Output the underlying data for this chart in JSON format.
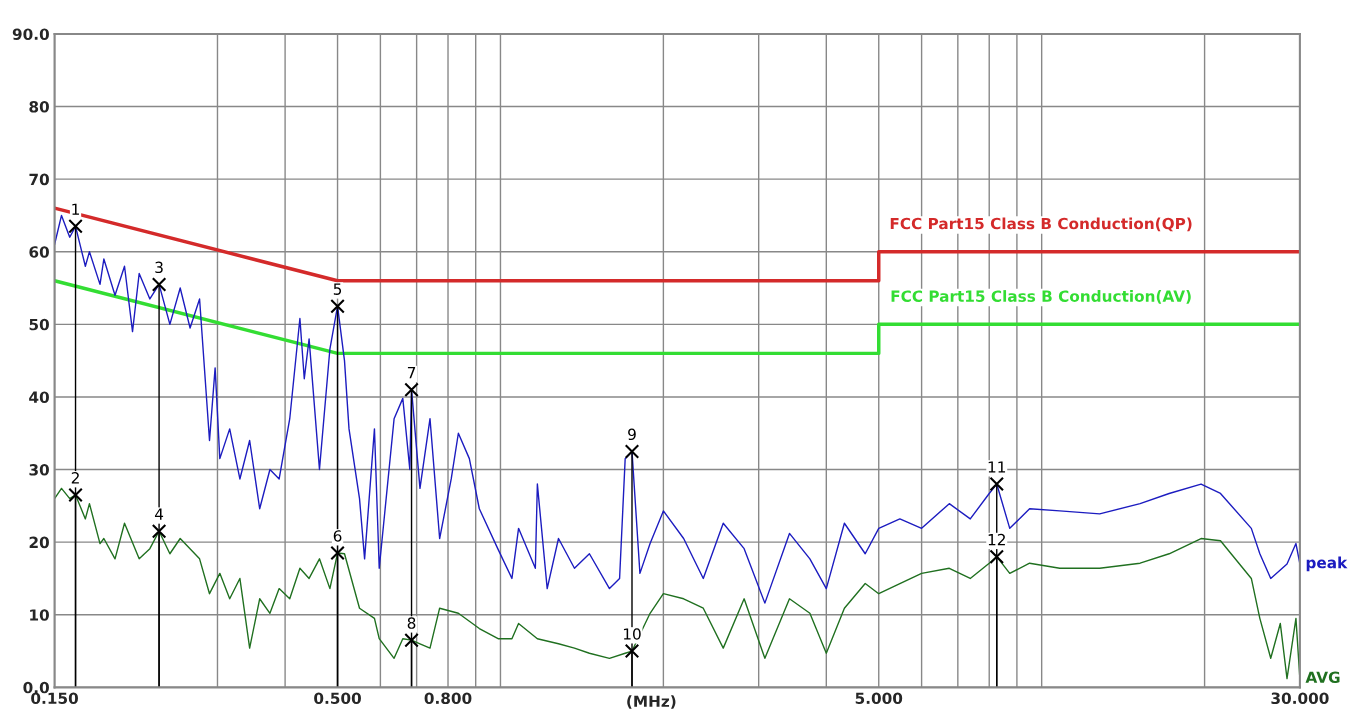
{
  "chart_data": {
    "type": "line",
    "xlabel": "(MHz)",
    "log": "x",
    "xlim": [
      0.15,
      30
    ],
    "ylim": [
      0,
      90
    ],
    "grid": true,
    "xticks": [
      {
        "value": 0.15,
        "label": "0.150"
      },
      {
        "value": 0.3,
        "label": null
      },
      {
        "value": 0.4,
        "label": null
      },
      {
        "value": 0.5,
        "label": "0.500"
      },
      {
        "value": 0.6,
        "label": null
      },
      {
        "value": 0.7,
        "label": null
      },
      {
        "value": 0.8,
        "label": "0.800"
      },
      {
        "value": 0.9,
        "label": null
      },
      {
        "value": 1,
        "label": null
      },
      {
        "value": 2,
        "label": null
      },
      {
        "value": 3,
        "label": null
      },
      {
        "value": 4,
        "label": null
      },
      {
        "value": 5,
        "label": "5.000"
      },
      {
        "value": 6,
        "label": null
      },
      {
        "value": 7,
        "label": null
      },
      {
        "value": 8,
        "label": null
      },
      {
        "value": 9,
        "label": null
      },
      {
        "value": 10,
        "label": null
      },
      {
        "value": 20,
        "label": null
      },
      {
        "value": 30,
        "label": "30.000"
      }
    ],
    "yticks": [
      {
        "value": 0,
        "label": "0.0"
      },
      10,
      20,
      30,
      40,
      50,
      60,
      70,
      80,
      {
        "value": 90,
        "label": "90.0"
      }
    ],
    "series": [
      {
        "name": "FCC Part15 Class B Conduction(QP)",
        "color": "#d42a2a",
        "x": [
          0.15,
          0.5,
          5,
          5,
          30
        ],
        "values": [
          66,
          56,
          56,
          60,
          60
        ]
      },
      {
        "name": "FCC Part15 Class B Conduction(AV)",
        "color": "#33dd33",
        "x": [
          0.15,
          0.5,
          5,
          5,
          30
        ],
        "values": [
          56,
          46,
          46,
          50,
          50
        ]
      },
      {
        "name": "peak",
        "color": "#1c1cc0",
        "x": [
          0.15,
          0.1545,
          0.16,
          0.164,
          0.171,
          0.174,
          0.182,
          0.185,
          0.194,
          0.202,
          0.209,
          0.215,
          0.225,
          0.234,
          0.245,
          0.256,
          0.267,
          0.278,
          0.29,
          0.297,
          0.303,
          0.316,
          0.33,
          0.344,
          0.359,
          0.375,
          0.39,
          0.408,
          0.426,
          0.434,
          0.443,
          0.463,
          0.484,
          0.5,
          0.515,
          0.525,
          0.549,
          0.561,
          0.585,
          0.597,
          0.636,
          0.66,
          0.68,
          0.685,
          0.71,
          0.741,
          0.772,
          0.811,
          0.836,
          0.876,
          0.914,
          0.99,
          1.05,
          1.08,
          1.16,
          1.17,
          1.22,
          1.28,
          1.37,
          1.46,
          1.59,
          1.66,
          1.7,
          1.75,
          1.81,
          1.89,
          2.0,
          2.18,
          2.37,
          2.58,
          2.82,
          3.08,
          3.42,
          3.73,
          4.0,
          4.32,
          4.72,
          5.0,
          5.47,
          6.0,
          6.75,
          7.38,
          8.0,
          8.26,
          8.73,
          9.5,
          10.8,
          12.8,
          15.2,
          17.2,
          19.7,
          21.4,
          24.4,
          25.3,
          26.5,
          28.4,
          29.5,
          30
        ],
        "values": [
          61,
          65,
          62,
          63.5,
          58,
          60,
          55.5,
          59,
          54,
          58,
          49,
          57,
          53.5,
          55.5,
          50,
          55,
          49.5,
          53.5,
          34,
          44,
          31.5,
          35.6,
          28.7,
          34,
          24.6,
          30,
          28.7,
          37,
          50.8,
          42.5,
          48,
          30,
          46.6,
          52.5,
          45,
          35.6,
          26,
          17.7,
          35.6,
          16.4,
          37,
          39.8,
          30,
          41,
          27.4,
          37,
          20.5,
          28.7,
          35,
          31.5,
          24.6,
          19,
          15,
          21.9,
          16.4,
          28,
          13.6,
          20.5,
          16.4,
          18.4,
          13.6,
          15,
          31.5,
          32.5,
          15.7,
          19.8,
          24.3,
          20.5,
          15,
          22.6,
          19.1,
          11.6,
          21.2,
          17.7,
          13.6,
          22.6,
          18.4,
          21.9,
          23.2,
          21.9,
          25.3,
          23.2,
          26.7,
          28,
          21.9,
          24.6,
          24.3,
          23.9,
          25.3,
          26.7,
          28,
          26.7,
          21.9,
          18.4,
          15,
          17,
          19.8,
          17
        ]
      },
      {
        "name": "AVG",
        "color": "#207020",
        "x": [
          0.15,
          0.1545,
          0.16,
          0.164,
          0.171,
          0.174,
          0.182,
          0.185,
          0.194,
          0.202,
          0.215,
          0.225,
          0.234,
          0.245,
          0.256,
          0.278,
          0.29,
          0.303,
          0.316,
          0.33,
          0.344,
          0.359,
          0.375,
          0.39,
          0.408,
          0.426,
          0.443,
          0.463,
          0.484,
          0.5,
          0.515,
          0.549,
          0.585,
          0.597,
          0.636,
          0.66,
          0.685,
          0.71,
          0.741,
          0.772,
          0.836,
          0.914,
          0.99,
          1.05,
          1.08,
          1.17,
          1.28,
          1.37,
          1.46,
          1.59,
          1.7,
          1.75,
          1.89,
          2.0,
          2.18,
          2.37,
          2.58,
          2.82,
          3.08,
          3.42,
          3.73,
          4.0,
          4.32,
          4.72,
          5.0,
          5.47,
          6.0,
          6.75,
          7.38,
          8.0,
          8.26,
          8.73,
          9.5,
          10.8,
          12.8,
          15.2,
          17.2,
          19.7,
          21.4,
          24.4,
          25.3,
          26.5,
          27.6,
          28.4,
          29.5,
          30
        ],
        "values": [
          26,
          27.4,
          26,
          26.5,
          23.2,
          25.3,
          19.8,
          20.5,
          17.7,
          22.6,
          17.7,
          19.1,
          21.5,
          18.4,
          20.5,
          17.7,
          12.9,
          15.7,
          12.2,
          15,
          5.4,
          12.2,
          10.2,
          13.6,
          12.2,
          16.4,
          15,
          17.7,
          13.6,
          18.5,
          18.4,
          10.9,
          9.5,
          6.7,
          4,
          6.7,
          6.5,
          6,
          5.4,
          10.9,
          10.2,
          8.1,
          6.7,
          6.7,
          8.8,
          6.7,
          6,
          5.4,
          4.7,
          4,
          4.7,
          5,
          10.2,
          12.9,
          12.2,
          10.9,
          5.4,
          12.2,
          4,
          12.2,
          10.2,
          4.7,
          10.9,
          14.3,
          12.9,
          14.3,
          15.7,
          16.4,
          15,
          17.1,
          18,
          15.7,
          17.1,
          16.4,
          16.4,
          17.1,
          18.4,
          20.5,
          20.2,
          15,
          9.5,
          4,
          8.8,
          1.2,
          9.5,
          1.2
        ]
      }
    ],
    "annotations": [
      {
        "text": "1",
        "x": 0.164,
        "y": 63.5
      },
      {
        "text": "2",
        "x": 0.164,
        "y": 26.5
      },
      {
        "text": "3",
        "x": 0.234,
        "y": 55.5
      },
      {
        "text": "4",
        "x": 0.234,
        "y": 21.5
      },
      {
        "text": "5",
        "x": 0.5,
        "y": 52.5
      },
      {
        "text": "6",
        "x": 0.5,
        "y": 18.5
      },
      {
        "text": "7",
        "x": 0.685,
        "y": 41
      },
      {
        "text": "8",
        "x": 0.685,
        "y": 6.5
      },
      {
        "text": "9",
        "x": 1.75,
        "y": 32.5
      },
      {
        "text": "10",
        "x": 1.75,
        "y": 5
      },
      {
        "text": "11",
        "x": 8.26,
        "y": 28
      },
      {
        "text": "12",
        "x": 8.26,
        "y": 18
      }
    ]
  }
}
